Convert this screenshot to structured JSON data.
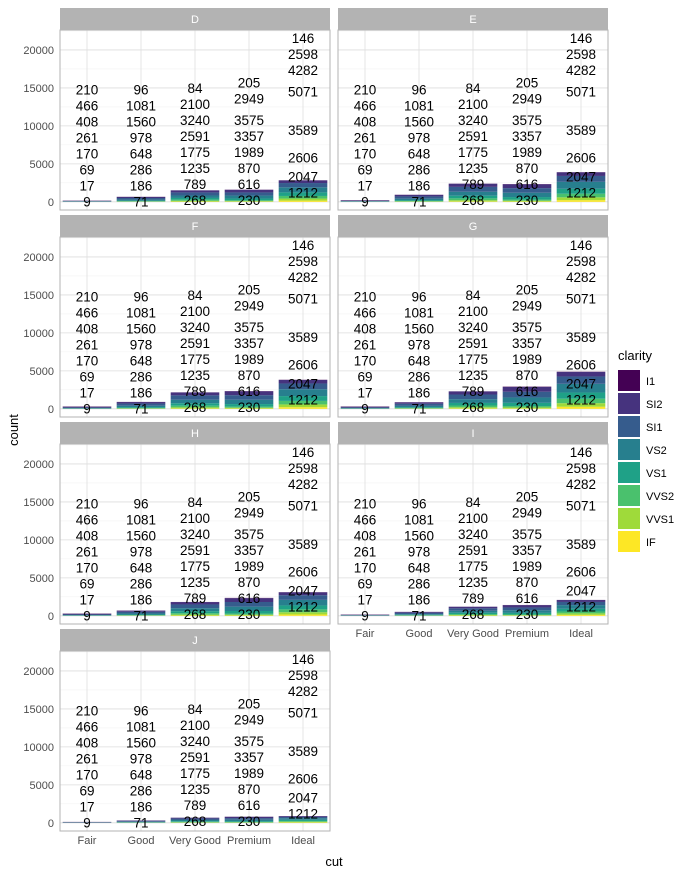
{
  "chart_data": {
    "type": "bar",
    "title": "",
    "xlabel": "cut",
    "ylabel": "count",
    "ylim": [
      0,
      22629
    ],
    "yticks": [
      0,
      5000,
      10000,
      15000,
      20000
    ],
    "categories": [
      "Fair",
      "Good",
      "Very Good",
      "Premium",
      "Ideal"
    ],
    "facet_by": "color",
    "facets": [
      {
        "name": "D",
        "totals": [
          163,
          662,
          1513,
          1603,
          2834
        ]
      },
      {
        "name": "E",
        "totals": [
          224,
          933,
          2400,
          2337,
          3903
        ]
      },
      {
        "name": "F",
        "totals": [
          312,
          909,
          2164,
          2331,
          3826
        ]
      },
      {
        "name": "G",
        "totals": [
          314,
          871,
          2299,
          2924,
          4884
        ]
      },
      {
        "name": "H",
        "totals": [
          303,
          702,
          1824,
          2360,
          3115
        ]
      },
      {
        "name": "I",
        "totals": [
          175,
          522,
          1204,
          1428,
          2093
        ]
      },
      {
        "name": "J",
        "totals": [
          119,
          307,
          678,
          808,
          896
        ]
      }
    ],
    "legend": {
      "title": "clarity",
      "position": "right",
      "entries": [
        "I1",
        "SI2",
        "SI1",
        "VS2",
        "VS1",
        "VVS2",
        "VVS1",
        "IF"
      ],
      "colors": [
        "#440154",
        "#46337E",
        "#365C8D",
        "#277F8E",
        "#1FA187",
        "#4AC16D",
        "#9FDA3A",
        "#FDE725"
      ]
    },
    "label_counts_by_cut": {
      "Fair": [
        210,
        466,
        408,
        261,
        170,
        69,
        17,
        9
      ],
      "Good": [
        96,
        1081,
        1560,
        978,
        648,
        286,
        186,
        71
      ],
      "Very Good": [
        84,
        2100,
        3240,
        2591,
        1775,
        1235,
        789,
        268
      ],
      "Premium": [
        205,
        2949,
        3575,
        3357,
        1989,
        870,
        616,
        230
      ],
      "Ideal": [
        146,
        2598,
        4282,
        5071,
        3589,
        2606,
        2047,
        1212
      ]
    }
  }
}
